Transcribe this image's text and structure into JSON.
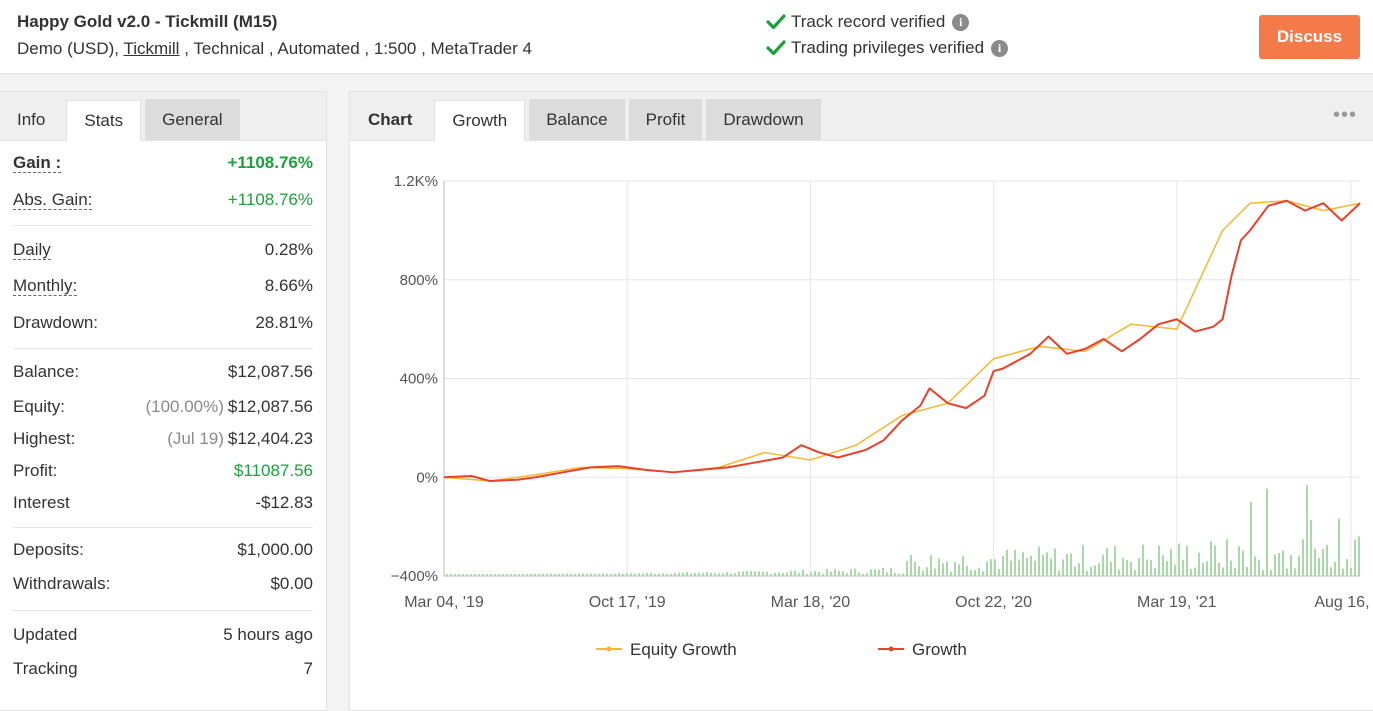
{
  "header": {
    "title": "Happy Gold v2.0 - Tickmill (M15)",
    "sub_prefix": "Demo (USD), ",
    "broker": "Tickmill",
    "sub_suffix": " , Technical , Automated , 1:500 , MetaTrader 4",
    "verify1": "Track record verified",
    "verify2": "Trading privileges verified",
    "discuss": "Discuss",
    "check_color": "#1aa13b",
    "accent": "#f47a4a"
  },
  "left_tabs": [
    "Info",
    "Stats",
    "General"
  ],
  "stats": {
    "gain_label": "Gain :",
    "gain_value": "+1108.76%",
    "abs_gain_label": "Abs. Gain:",
    "abs_gain_value": "+1108.76%",
    "daily_label": "Daily",
    "daily_value": "0.28%",
    "monthly_label": "Monthly:",
    "monthly_value": "8.66%",
    "drawdown_label": "Drawdown:",
    "drawdown_value": "28.81%",
    "balance_label": "Balance:",
    "balance_value": "$12,087.56",
    "equity_label": "Equity:",
    "equity_pct": "(100.00%)",
    "equity_value": "$12,087.56",
    "highest_label": "Highest:",
    "highest_date": "(Jul 19)",
    "highest_value": "$12,404.23",
    "profit_label": "Profit:",
    "profit_value": "$11087.56",
    "interest_label": "Interest",
    "interest_value": "-$12.83",
    "deposits_label": "Deposits:",
    "deposits_value": "$1,000.00",
    "withdrawals_label": "Withdrawals:",
    "withdrawals_value": "$0.00",
    "updated_label": "Updated",
    "updated_value": "5 hours ago",
    "tracking_label": "Tracking",
    "tracking_value": "7"
  },
  "right_tabs": {
    "chart_label": "Chart",
    "tabs": [
      "Growth",
      "Balance",
      "Profit",
      "Drawdown"
    ],
    "more": "•••"
  },
  "chart_data": {
    "type": "line",
    "ylim": [
      -400,
      1200
    ],
    "y_ticks": [
      "1.2K%",
      "800%",
      "400%",
      "0%",
      "−400%"
    ],
    "y_tick_values": [
      1200,
      800,
      400,
      0,
      -400
    ],
    "x_ticks": [
      "Mar 04, '19",
      "Oct 17, '19",
      "Mar 18, '20",
      "Oct 22, '20",
      "Mar 19, '21",
      "Aug 16, ..."
    ],
    "grid": true,
    "legend_placement": "bottom",
    "series": [
      {
        "name": "Equity Growth",
        "color": "#f5b82e",
        "x": [
          0,
          0.05,
          0.1,
          0.15,
          0.2,
          0.25,
          0.3,
          0.35,
          0.4,
          0.45,
          0.5,
          0.55,
          0.6,
          0.65,
          0.7,
          0.75,
          0.8,
          0.85,
          0.88,
          0.92,
          0.96,
          1.0
        ],
        "values": [
          0,
          -15,
          10,
          40,
          35,
          20,
          40,
          100,
          70,
          130,
          250,
          300,
          480,
          530,
          510,
          620,
          600,
          1000,
          1110,
          1120,
          1080,
          1110
        ]
      },
      {
        "name": "Growth",
        "color": "#e8412c",
        "x": [
          0,
          0.03,
          0.05,
          0.08,
          0.1,
          0.13,
          0.16,
          0.19,
          0.22,
          0.25,
          0.28,
          0.31,
          0.34,
          0.37,
          0.39,
          0.41,
          0.43,
          0.46,
          0.48,
          0.5,
          0.52,
          0.53,
          0.55,
          0.57,
          0.59,
          0.6,
          0.61,
          0.62,
          0.64,
          0.66,
          0.68,
          0.7,
          0.72,
          0.74,
          0.76,
          0.78,
          0.8,
          0.82,
          0.84,
          0.85,
          0.86,
          0.87,
          0.88,
          0.9,
          0.92,
          0.94,
          0.96,
          0.98,
          1.0
        ],
        "values": [
          0,
          5,
          -15,
          -10,
          0,
          20,
          40,
          45,
          30,
          20,
          30,
          40,
          60,
          80,
          130,
          100,
          80,
          110,
          150,
          230,
          290,
          360,
          300,
          280,
          330,
          430,
          440,
          460,
          500,
          570,
          500,
          520,
          560,
          510,
          560,
          620,
          640,
          590,
          610,
          640,
          820,
          960,
          1000,
          1100,
          1120,
          1080,
          1110,
          1040,
          1110
        ]
      }
    ],
    "volume_bars_series": "Daily volume (no label)"
  }
}
